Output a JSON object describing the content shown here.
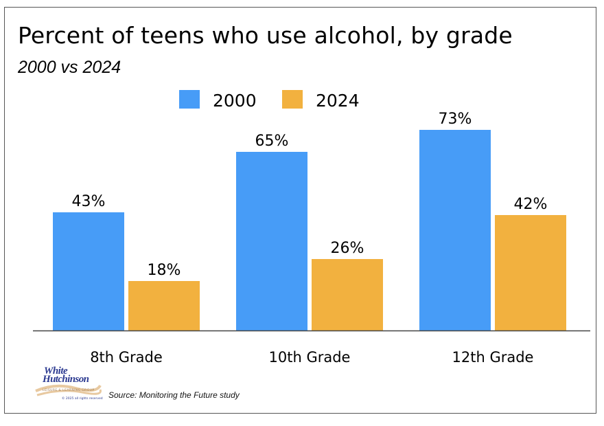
{
  "chart_data": {
    "type": "bar",
    "title": "Percent of teens who use alcohol, by grade",
    "subtitle": "2000 vs 2024",
    "categories": [
      "8th Grade",
      "10th Grade",
      "12th Grade"
    ],
    "series": [
      {
        "name": "2000",
        "color": "#479cf7",
        "values": [
          43,
          65,
          73
        ],
        "labels": [
          "43%",
          "65%",
          "73%"
        ]
      },
      {
        "name": "2024",
        "color": "#f2b13f",
        "values": [
          18,
          26,
          42
        ],
        "labels": [
          "18%",
          "26%",
          "42%"
        ]
      }
    ],
    "xlabel": "",
    "ylabel": "",
    "ylim": [
      0,
      100
    ],
    "grid": false,
    "legend": "top-center",
    "value_suffix": "%"
  },
  "footer": {
    "source": "Source: Monitoring the Future study",
    "logo": {
      "line1": "White",
      "line2": "Hutchinson",
      "tagline": "LEISURE & LEARNING GROUP",
      "copyright": "© 2025 all rights reserved"
    }
  }
}
